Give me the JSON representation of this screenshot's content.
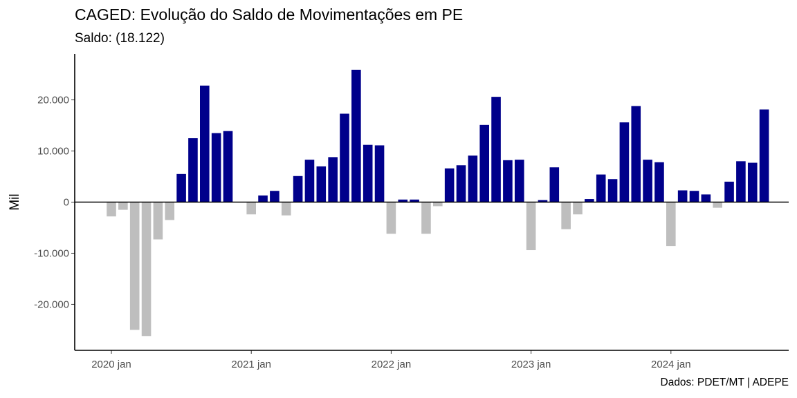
{
  "chart_data": {
    "type": "bar",
    "title": "CAGED: Evolução do Saldo de Movimentações em PE",
    "subtitle": "Saldo: (18.122)",
    "caption": "Dados: PDET/MT | ADEPE",
    "ylabel": "Mil",
    "xlabel": "",
    "ylim": [
      -29000,
      29000
    ],
    "yticks": [
      -20000,
      -10000,
      0,
      10000,
      20000
    ],
    "ytick_labels": [
      "-20.000",
      "-10.000",
      "0",
      "10.000",
      "20.000"
    ],
    "xticks": [
      {
        "label": "2020 jan",
        "index": 0
      },
      {
        "label": "2021 jan",
        "index": 12
      },
      {
        "label": "2022 jan",
        "index": 24
      },
      {
        "label": "2023 jan",
        "index": 36
      },
      {
        "label": "2024 jan",
        "index": 48
      }
    ],
    "grid": false,
    "colors": {
      "positive": "#00008B",
      "negative": "#BEBEBE"
    },
    "values": [
      -2800,
      -1500,
      -25000,
      -26200,
      -7300,
      -3500,
      5500,
      12500,
      22800,
      13500,
      13900,
      0,
      -2400,
      1300,
      2200,
      -2600,
      5100,
      8300,
      7000,
      8800,
      17300,
      25900,
      11200,
      11100,
      -6200,
      500,
      500,
      -6200,
      -800,
      6600,
      7200,
      9100,
      15100,
      20600,
      8200,
      8300,
      -9400,
      400,
      6800,
      -5300,
      -2400,
      600,
      5400,
      4500,
      15600,
      18800,
      8300,
      7800,
      -8600,
      2300,
      2200,
      1500,
      -1100,
      4000,
      8000,
      7700,
      18122
    ]
  }
}
